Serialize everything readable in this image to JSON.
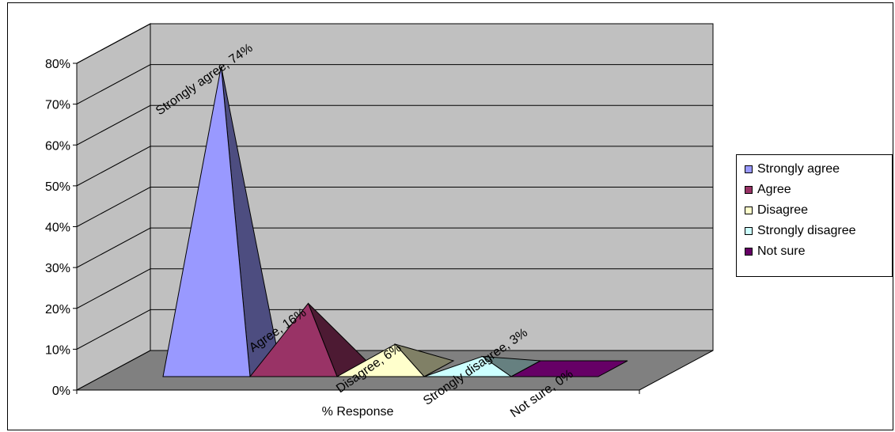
{
  "chart_data": {
    "type": "bar",
    "style": "3d-pyramid",
    "title": "",
    "xlabel": "% Response",
    "ylabel": "",
    "ylim": [
      0,
      80
    ],
    "yticks": [
      "0%",
      "10%",
      "20%",
      "30%",
      "40%",
      "50%",
      "60%",
      "70%",
      "80%"
    ],
    "grid": true,
    "legend_position": "right",
    "series": [
      {
        "name": "Strongly agree",
        "value": 74,
        "data_label": "Strongly agree, 74%",
        "color": "#9999ff",
        "side_color": "#4d4d80"
      },
      {
        "name": "Agree",
        "value": 16,
        "data_label": "Agree, 16%",
        "color": "#993366",
        "side_color": "#4d1a33"
      },
      {
        "name": "Disagree",
        "value": 6,
        "data_label": "Disagree, 6%",
        "color": "#ffffcc",
        "side_color": "#808066"
      },
      {
        "name": "Strongly disagree",
        "value": 3,
        "data_label": "Strongly disagree, 3%",
        "color": "#ccffff",
        "side_color": "#668080"
      },
      {
        "name": "Not sure",
        "value": 0,
        "data_label": "Not sure, 0%",
        "color": "#660066",
        "side_color": "#330033"
      }
    ]
  }
}
